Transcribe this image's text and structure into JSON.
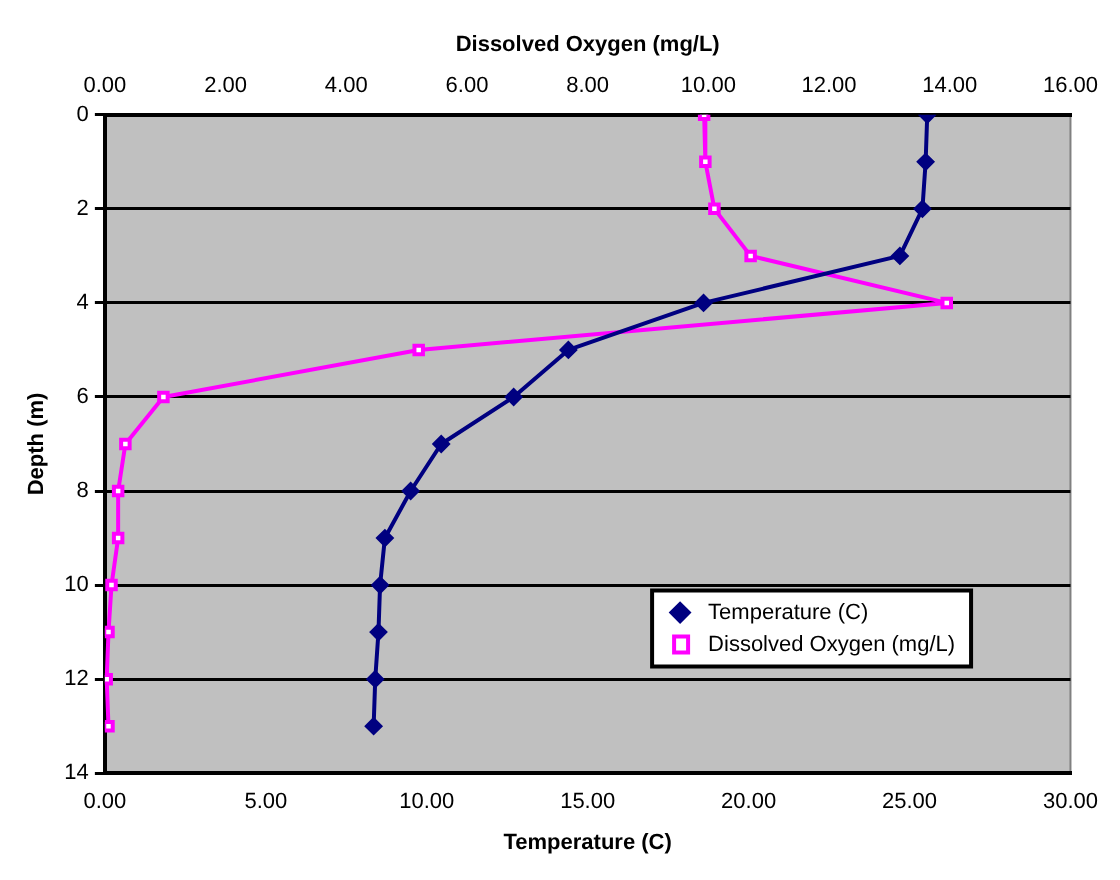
{
  "chart_data": {
    "type": "line",
    "xlabel": "Temperature (C)",
    "x2label": "Dissolved Oxygen (mg/L)",
    "ylabel": "Depth (m)",
    "xlim": [
      0,
      30
    ],
    "xticks": [
      {
        "value": 0,
        "label": "0.00"
      },
      {
        "value": 5,
        "label": "5.00"
      },
      {
        "value": 10,
        "label": "10.00"
      },
      {
        "value": 15,
        "label": "15.00"
      },
      {
        "value": 20,
        "label": "20.00"
      },
      {
        "value": 25,
        "label": "25.00"
      },
      {
        "value": 30,
        "label": "30.00"
      }
    ],
    "x2lim": [
      0,
      16
    ],
    "x2ticks": [
      {
        "value": 0,
        "label": "0.00"
      },
      {
        "value": 2,
        "label": "2.00"
      },
      {
        "value": 4,
        "label": "4.00"
      },
      {
        "value": 6,
        "label": "6.00"
      },
      {
        "value": 8,
        "label": "8.00"
      },
      {
        "value": 10,
        "label": "10.00"
      },
      {
        "value": 12,
        "label": "12.00"
      },
      {
        "value": 14,
        "label": "14.00"
      },
      {
        "value": 16,
        "label": "16.00"
      }
    ],
    "ylim": [
      14,
      0
    ],
    "yticks": [
      0,
      2,
      4,
      6,
      8,
      10,
      12,
      14
    ],
    "grid": "y",
    "legend": "bottom right",
    "series": [
      {
        "name": "Temperature (C)",
        "color": "#000080",
        "marker": "diamond",
        "x": [
          25.55,
          25.5,
          25.4,
          24.7,
          18.6,
          14.4,
          12.7,
          10.45,
          9.5,
          8.7,
          8.55,
          8.5,
          8.4,
          8.35
        ],
        "values": [
          0,
          1,
          2,
          3,
          4,
          5,
          6,
          7,
          8,
          9,
          10,
          11,
          12,
          13
        ]
      },
      {
        "name": "Dissolved Oxygen (mg/L)",
        "color": "#ff00ff",
        "marker": "square",
        "axis": "x2",
        "x": [
          9.93,
          9.95,
          10.1,
          10.7,
          13.95,
          5.2,
          0.97,
          0.34,
          0.22,
          0.22,
          0.11,
          0.06,
          0.03,
          0.06
        ],
        "values": [
          0,
          1,
          2,
          3,
          4,
          5,
          6,
          7,
          8,
          9,
          10,
          11,
          12,
          13
        ]
      }
    ]
  }
}
